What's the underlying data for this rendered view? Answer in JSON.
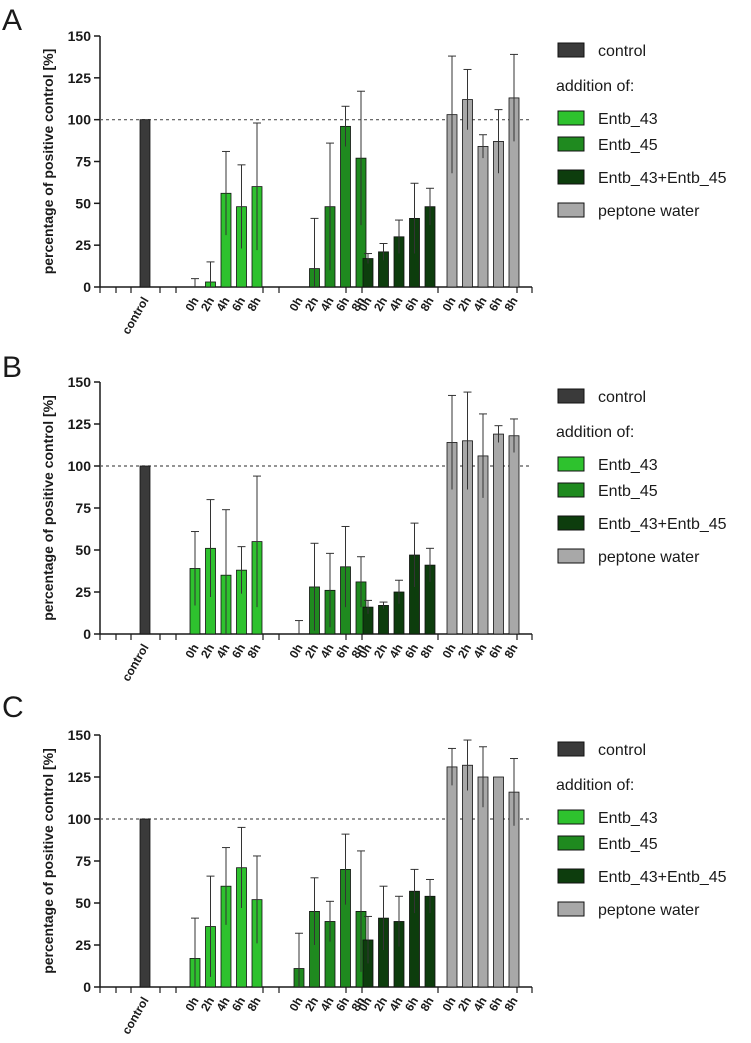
{
  "legend": {
    "control": "control",
    "addition_of": "addition of:",
    "entb43": "Entb_43",
    "entb45": "Entb_45",
    "combo": "Entb_43+Entb_45",
    "peptone": "peptone water"
  },
  "colors": {
    "control": "#3a3a3a",
    "entb43": "#2ec22e",
    "entb45": "#1f8a1f",
    "combo": "#0d3d0d",
    "peptone": "#a8a8a8",
    "axis": "#1a1a1a",
    "refline": "#555555"
  },
  "chart_data": [
    {
      "panel": "A",
      "type": "bar",
      "ylabel": "percentage of positive control [%]",
      "ylim": [
        0,
        150
      ],
      "yticks": [
        0,
        25,
        50,
        75,
        100,
        125,
        150
      ],
      "reference_line": 100,
      "control": {
        "label": "control",
        "value": 100
      },
      "time_labels": [
        "0h",
        "2h",
        "4h",
        "6h",
        "8h"
      ],
      "series": [
        {
          "name": "Entb_43",
          "values": [
            0,
            3,
            56,
            48,
            60
          ],
          "errors": [
            5,
            12,
            25,
            25,
            38
          ]
        },
        {
          "name": "Entb_45",
          "values": [
            0,
            11,
            48,
            96,
            77
          ],
          "errors": [
            0,
            30,
            38,
            12,
            40
          ]
        },
        {
          "name": "Entb_43+Entb_45",
          "values": [
            17,
            21,
            30,
            41,
            48
          ],
          "errors": [
            3,
            5,
            10,
            21,
            11
          ]
        },
        {
          "name": "peptone water",
          "values": [
            103,
            112,
            84,
            87,
            113
          ],
          "errors": [
            35,
            18,
            7,
            19,
            26
          ]
        }
      ]
    },
    {
      "panel": "B",
      "type": "bar",
      "ylabel": "percentage of positive control [%]",
      "ylim": [
        0,
        150
      ],
      "yticks": [
        0,
        25,
        50,
        75,
        100,
        125,
        150
      ],
      "reference_line": 100,
      "control": {
        "label": "control",
        "value": 100
      },
      "time_labels": [
        "0h",
        "2h",
        "4h",
        "6h",
        "8h"
      ],
      "series": [
        {
          "name": "Entb_43",
          "values": [
            39,
            51,
            35,
            38,
            55
          ],
          "errors": [
            22,
            29,
            39,
            14,
            39
          ]
        },
        {
          "name": "Entb_45",
          "values": [
            0,
            28,
            26,
            40,
            31
          ],
          "errors": [
            8,
            26,
            22,
            24,
            15
          ]
        },
        {
          "name": "Entb_43+Entb_45",
          "values": [
            16,
            17,
            25,
            47,
            41
          ],
          "errors": [
            4,
            2,
            7,
            19,
            10
          ]
        },
        {
          "name": "peptone water",
          "values": [
            114,
            115,
            106,
            119,
            118
          ],
          "errors": [
            28,
            29,
            25,
            5,
            10
          ]
        }
      ]
    },
    {
      "panel": "C",
      "type": "bar",
      "ylabel": "percentage of positive control [%]",
      "ylim": [
        0,
        150
      ],
      "yticks": [
        0,
        25,
        50,
        75,
        100,
        125,
        150
      ],
      "reference_line": 100,
      "control": {
        "label": "control",
        "value": 100
      },
      "time_labels": [
        "0h",
        "2h",
        "4h",
        "6h",
        "8h"
      ],
      "series": [
        {
          "name": "Entb_43",
          "values": [
            17,
            36,
            60,
            71,
            52
          ],
          "errors": [
            24,
            30,
            23,
            24,
            26
          ]
        },
        {
          "name": "Entb_45",
          "values": [
            11,
            45,
            39,
            70,
            45
          ],
          "errors": [
            21,
            20,
            12,
            21,
            36
          ]
        },
        {
          "name": "Entb_43+Entb_45",
          "values": [
            28,
            41,
            39,
            57,
            54
          ],
          "errors": [
            14,
            19,
            15,
            13,
            10
          ]
        },
        {
          "name": "peptone water",
          "values": [
            131,
            132,
            125,
            125,
            116
          ],
          "errors": [
            11,
            15,
            18,
            0,
            20
          ]
        }
      ]
    }
  ]
}
